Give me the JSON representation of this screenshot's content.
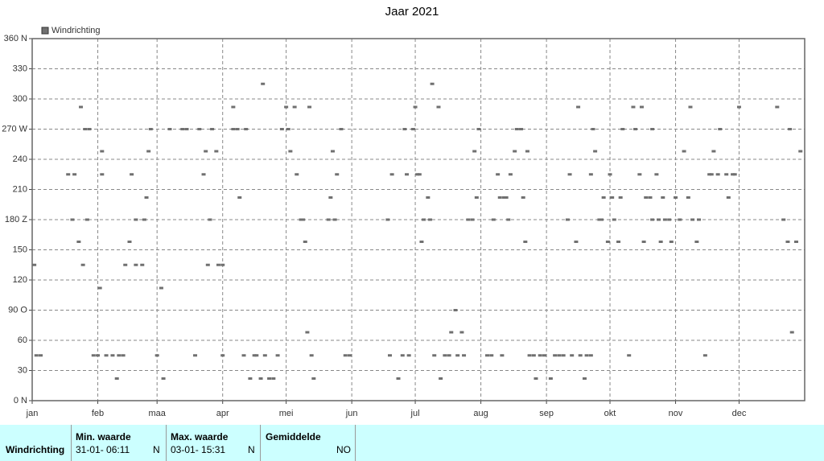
{
  "chart_data": {
    "type": "scatter",
    "title": "Jaar 2021",
    "xlim": [
      0,
      365
    ],
    "xticks": [
      {
        "value": 0,
        "label": "jan"
      },
      {
        "value": 31,
        "label": "feb"
      },
      {
        "value": 59,
        "label": "maa"
      },
      {
        "value": 90,
        "label": "apr"
      },
      {
        "value": 120,
        "label": "mei"
      },
      {
        "value": 151,
        "label": "jun"
      },
      {
        "value": 181,
        "label": "jul"
      },
      {
        "value": 212,
        "label": "aug"
      },
      {
        "value": 243,
        "label": "sep"
      },
      {
        "value": 273,
        "label": "okt"
      },
      {
        "value": 304,
        "label": "nov"
      },
      {
        "value": 334,
        "label": "dec"
      }
    ],
    "ylim": [
      0,
      360
    ],
    "yticks": [
      {
        "value": 0,
        "label": "0 N"
      },
      30,
      60,
      {
        "value": 90,
        "label": "90 O"
      },
      120,
      150,
      {
        "value": 180,
        "label": "180 Z"
      },
      210,
      240,
      {
        "value": 270,
        "label": "270 W"
      },
      300,
      330,
      {
        "value": 360,
        "label": "360 N"
      }
    ],
    "grid": true,
    "series": [
      {
        "name": "Windrichting",
        "color": "#707070",
        "x": [
          1,
          2,
          4,
          17,
          20,
          19,
          22,
          23,
          24,
          25,
          27,
          26,
          29,
          31,
          32,
          33,
          33,
          35,
          38,
          40,
          41,
          43,
          44,
          46,
          47,
          49,
          49,
          52,
          53,
          54,
          55,
          56,
          59,
          61,
          62,
          65,
          71,
          73,
          77,
          79,
          81,
          82,
          83,
          84,
          85,
          87,
          88,
          90,
          90,
          95,
          95,
          97,
          98,
          100,
          101,
          103,
          105,
          106,
          108,
          109,
          110,
          112,
          114,
          116,
          118,
          120,
          121,
          122,
          124,
          125,
          127,
          128,
          129,
          130,
          131,
          132,
          133,
          140,
          141,
          142,
          143,
          144,
          146,
          148,
          150,
          168,
          169,
          170,
          173,
          175,
          176,
          177,
          178,
          180,
          181,
          182,
          183,
          184,
          185,
          187,
          188,
          189,
          190,
          192,
          193,
          195,
          197,
          198,
          200,
          201,
          203,
          204,
          206,
          208,
          209,
          210,
          211,
          215,
          217,
          218,
          220,
          221,
          222,
          223,
          224,
          225,
          226,
          228,
          229,
          231,
          232,
          233,
          234,
          235,
          237,
          238,
          240,
          242,
          245,
          247,
          249,
          251,
          253,
          254,
          255,
          257,
          258,
          259,
          261,
          262,
          264,
          264,
          265,
          266,
          268,
          269,
          270,
          272,
          273,
          274,
          275,
          277,
          278,
          279,
          282,
          284,
          285,
          287,
          288,
          289,
          290,
          292,
          293,
          293,
          295,
          296,
          297,
          298,
          299,
          301,
          302,
          304,
          306,
          308,
          310,
          311,
          312,
          314,
          315,
          318,
          320,
          321,
          322,
          324,
          325,
          328,
          329,
          331,
          332,
          334,
          352,
          355,
          357,
          358,
          359,
          361,
          363
        ],
        "values": [
          135,
          45,
          45,
          225,
          225,
          180,
          158,
          292,
          135,
          270,
          270,
          180,
          45,
          45,
          112,
          225,
          248,
          45,
          45,
          22,
          45,
          45,
          135,
          158,
          225,
          180,
          135,
          135,
          180,
          202,
          248,
          270,
          45,
          112,
          22,
          270,
          270,
          270,
          45,
          270,
          225,
          248,
          135,
          180,
          270,
          248,
          135,
          135,
          45,
          270,
          292,
          270,
          202,
          45,
          270,
          22,
          45,
          45,
          22,
          315,
          45,
          22,
          22,
          45,
          270,
          292,
          270,
          248,
          292,
          225,
          180,
          180,
          158,
          68,
          292,
          45,
          22,
          180,
          202,
          248,
          180,
          225,
          270,
          45,
          45,
          180,
          45,
          225,
          22,
          45,
          270,
          225,
          45,
          270,
          292,
          225,
          225,
          158,
          180,
          202,
          180,
          315,
          45,
          292,
          22,
          45,
          45,
          68,
          90,
          45,
          68,
          45,
          180,
          180,
          248,
          202,
          270,
          45,
          45,
          180,
          225,
          202,
          45,
          202,
          202,
          180,
          225,
          248,
          270,
          270,
          202,
          158,
          248,
          45,
          45,
          22,
          45,
          45,
          22,
          45,
          45,
          45,
          180,
          225,
          45,
          158,
          292,
          45,
          22,
          45,
          45,
          225,
          270,
          248,
          180,
          180,
          202,
          158,
          225,
          202,
          180,
          158,
          202,
          270,
          45,
          292,
          270,
          225,
          292,
          158,
          202,
          202,
          180,
          270,
          225,
          180,
          158,
          202,
          180,
          180,
          158,
          202,
          180,
          248,
          202,
          292,
          180,
          158,
          180,
          45,
          225,
          225,
          248,
          225,
          270,
          225,
          202,
          225,
          225,
          292,
          292,
          180,
          158,
          270,
          68,
          158,
          248
        ]
      }
    ]
  },
  "table": {
    "headers": [
      "Min. waarde",
      "Max. waarde",
      "Gemiddelde"
    ],
    "rows": [
      [
        "Windrichting",
        "31-01- 06:11",
        "N",
        "03-01- 15:31",
        "N",
        "NO"
      ]
    ]
  }
}
